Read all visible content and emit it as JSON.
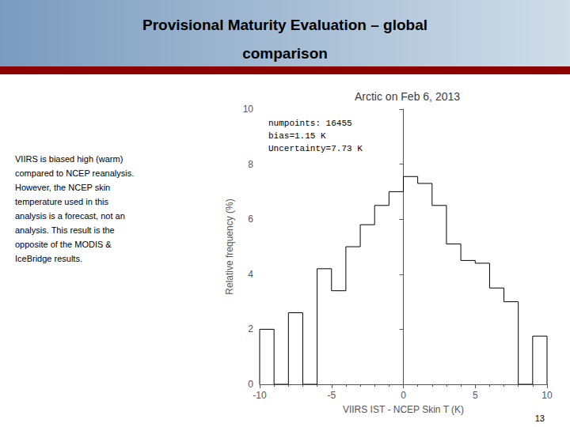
{
  "chart_data": {
    "type": "histogram",
    "header_lines": [
      "Provisional Maturity Evaluation – global",
      "comparison"
    ],
    "title": "Arctic on Feb 6, 2013",
    "xlabel": "VIIRS IST - NCEP Skin T (K)",
    "ylabel": "Relative frequency (%)",
    "bins": [
      -10,
      -9,
      -8,
      -7,
      -6,
      -5,
      -4,
      -3,
      -2,
      -1,
      0,
      1,
      2,
      3,
      4,
      5,
      6,
      7,
      8,
      9,
      10
    ],
    "values": [
      2.0,
      0.0,
      2.6,
      0.0,
      4.2,
      3.4,
      5.0,
      5.8,
      6.5,
      7.0,
      7.55,
      7.3,
      6.5,
      5.1,
      4.5,
      4.4,
      3.5,
      3.0,
      0.0,
      1.75
    ],
    "color": "#000000",
    "xlim": [
      -10,
      10
    ],
    "xticks": [
      -10,
      -5,
      0,
      5,
      10
    ],
    "ylim": [
      0,
      10
    ],
    "yticks": [
      0,
      2,
      4,
      6,
      8,
      10
    ],
    "grid": false,
    "annotations": [
      "numpoints: 16455\nbias=1.15 K\nUncertainty=7.73 K",
      "VIIRS is biased high (warm)\ncompared to NCEP reanalysis.\nHowever, the NCEP skin\ntemperature used in this\nanalysis is a forecast, not an\nanalysis. This result is the\nopposite of the MODIS &\nIceBridge results.",
      "13"
    ]
  }
}
